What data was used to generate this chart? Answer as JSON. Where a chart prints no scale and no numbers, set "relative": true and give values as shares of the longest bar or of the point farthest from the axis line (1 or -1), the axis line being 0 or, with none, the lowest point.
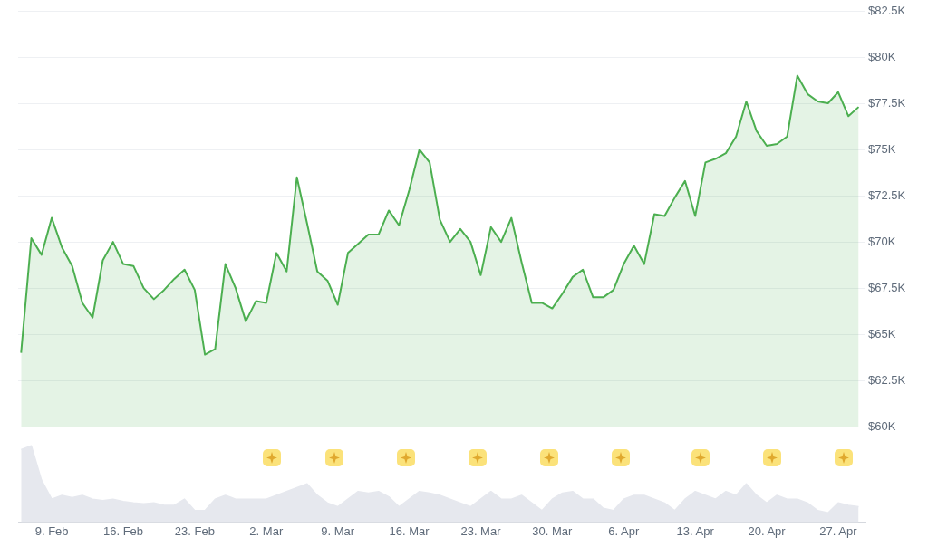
{
  "chart_data": [
    {
      "type": "area",
      "color": "#4caf50",
      "marker": "none",
      "grid": "y",
      "tick_labels": "y",
      "x": [
        "--02-06",
        "--02-07",
        "--02-08",
        "--02-09",
        "--02-10",
        "--02-11",
        "--02-12",
        "--02-13",
        "--02-14",
        "--02-15",
        "--02-16",
        "--02-17",
        "--02-18",
        "--02-19",
        "--02-20",
        "--02-21",
        "--02-22",
        "--02-23",
        "--02-24",
        "--02-25",
        "--02-26",
        "--02-27",
        "--02-28",
        "--03-01",
        "--03-02",
        "--03-03",
        "--03-04",
        "--03-05",
        "--03-06",
        "--03-07",
        "--03-08",
        "--03-09",
        "--03-10",
        "--03-11",
        "--03-12",
        "--03-13",
        "--03-14",
        "--03-15",
        "--03-16",
        "--03-17",
        "--03-18",
        "--03-19",
        "--03-20",
        "--03-21",
        "--03-22",
        "--03-23",
        "--03-24",
        "--03-25",
        "--03-26",
        "--03-27",
        "--03-28",
        "--03-29",
        "--03-30",
        "--03-31",
        "--04-01",
        "--04-02",
        "--04-03",
        "--04-04",
        "--04-05",
        "--04-06",
        "--04-07",
        "--04-08",
        "--04-09",
        "--04-10",
        "--04-11",
        "--04-12",
        "--04-13",
        "--04-14",
        "--04-15",
        "--04-16",
        "--04-17",
        "--04-18",
        "--04-19",
        "--04-20",
        "--04-21",
        "--04-22",
        "--04-23",
        "--04-24",
        "--04-25",
        "--04-26",
        "--04-27",
        "--04-28",
        "--04-29"
      ],
      "values": [
        64.0,
        70.2,
        69.3,
        71.3,
        69.7,
        68.7,
        66.7,
        65.9,
        69.0,
        70.0,
        68.8,
        68.7,
        67.5,
        66.9,
        67.4,
        68.0,
        68.5,
        67.4,
        63.9,
        64.2,
        68.8,
        67.5,
        65.7,
        66.8,
        66.7,
        69.4,
        68.4,
        73.5,
        71.0,
        68.4,
        67.9,
        66.6,
        69.4,
        69.9,
        70.4,
        70.4,
        71.7,
        70.9,
        72.8,
        75.0,
        74.3,
        71.2,
        70.0,
        70.7,
        70.0,
        68.2,
        70.8,
        70.0,
        71.3,
        68.9,
        66.7,
        66.7,
        66.4,
        67.2,
        68.1,
        68.5,
        67.0,
        67.0,
        67.4,
        68.8,
        69.8,
        68.8,
        71.5,
        71.4,
        72.4,
        73.3,
        71.4,
        74.3,
        74.5,
        74.8,
        75.7,
        77.6,
        76.0,
        75.2,
        75.3,
        75.7,
        79.0,
        78.0,
        77.6,
        77.5,
        78.1,
        76.8,
        77.3
      ],
      "xlim": [
        "--02-05T17:00",
        "--04-29T16:00"
      ],
      "ylim": [
        60,
        82.5
      ],
      "yticks": [
        {
          "value": 60,
          "label": "$60K"
        },
        {
          "value": 62.5,
          "label": "$62.5K"
        },
        {
          "value": 65,
          "label": "$65K"
        },
        {
          "value": 67.5,
          "label": "$67.5K"
        },
        {
          "value": 70,
          "label": "$70K"
        },
        {
          "value": 72.5,
          "label": "$72.5K"
        },
        {
          "value": 75,
          "label": "$75K"
        },
        {
          "value": 77.5,
          "label": "$77.5K"
        },
        {
          "value": 80,
          "label": "$80K"
        },
        {
          "value": 82.5,
          "label": "$82.5K"
        }
      ]
    },
    {
      "type": "area",
      "color": "#e6e8ee",
      "relative": true,
      "marker": "none",
      "x": [
        "--02-06",
        "--02-07",
        "--02-08",
        "--02-09",
        "--02-10",
        "--02-11",
        "--02-12",
        "--02-13",
        "--02-14",
        "--02-15",
        "--02-16",
        "--02-17",
        "--02-18",
        "--02-19",
        "--02-20",
        "--02-21",
        "--02-22",
        "--02-23",
        "--02-24",
        "--02-25",
        "--02-26",
        "--02-27",
        "--02-28",
        "--03-01",
        "--03-02",
        "--03-03",
        "--03-04",
        "--03-05",
        "--03-06",
        "--03-07",
        "--03-08",
        "--03-09",
        "--03-10",
        "--03-11",
        "--03-12",
        "--03-13",
        "--03-14",
        "--03-15",
        "--03-16",
        "--03-17",
        "--03-18",
        "--03-19",
        "--03-20",
        "--03-21",
        "--03-22",
        "--03-23",
        "--03-24",
        "--03-25",
        "--03-26",
        "--03-27",
        "--03-28",
        "--03-29",
        "--03-30",
        "--03-31",
        "--04-01",
        "--04-02",
        "--04-03",
        "--04-04",
        "--04-05",
        "--04-06",
        "--04-07",
        "--04-08",
        "--04-09",
        "--04-10",
        "--04-11",
        "--04-12",
        "--04-13",
        "--04-14",
        "--04-15",
        "--04-16",
        "--04-17",
        "--04-18",
        "--04-19",
        "--04-20",
        "--04-21",
        "--04-22",
        "--04-23",
        "--04-24",
        "--04-25",
        "--04-26",
        "--04-27",
        "--04-28",
        "--04-29"
      ],
      "values": [
        0.95,
        1.0,
        0.55,
        0.3,
        0.35,
        0.32,
        0.35,
        0.3,
        0.28,
        0.3,
        0.27,
        0.25,
        0.24,
        0.25,
        0.22,
        0.22,
        0.3,
        0.15,
        0.15,
        0.3,
        0.35,
        0.3,
        0.3,
        0.3,
        0.3,
        0.35,
        0.4,
        0.45,
        0.5,
        0.35,
        0.25,
        0.2,
        0.3,
        0.4,
        0.38,
        0.4,
        0.33,
        0.2,
        0.3,
        0.4,
        0.38,
        0.35,
        0.3,
        0.25,
        0.2,
        0.3,
        0.4,
        0.3,
        0.3,
        0.35,
        0.25,
        0.15,
        0.3,
        0.38,
        0.4,
        0.3,
        0.3,
        0.18,
        0.15,
        0.3,
        0.35,
        0.35,
        0.3,
        0.25,
        0.15,
        0.3,
        0.4,
        0.35,
        0.3,
        0.4,
        0.35,
        0.5,
        0.35,
        0.25,
        0.35,
        0.3,
        0.3,
        0.25,
        0.15,
        0.12,
        0.25,
        0.22,
        0.2
      ],
      "xlim": [
        "--02-05T17:00",
        "--04-29T16:00"
      ],
      "xticks": [
        {
          "value": "--02-09",
          "label": "9. Feb"
        },
        {
          "value": "--02-16",
          "label": "16. Feb"
        },
        {
          "value": "--02-23",
          "label": "23. Feb"
        },
        {
          "value": "--03-02",
          "label": "2. Mar"
        },
        {
          "value": "--03-09",
          "label": "9. Mar"
        },
        {
          "value": "--03-16",
          "label": "16. Mar"
        },
        {
          "value": "--03-23",
          "label": "23. Mar"
        },
        {
          "value": "--03-30",
          "label": "30. Mar"
        },
        {
          "value": "--04-06",
          "label": "6. Apr"
        },
        {
          "value": "--04-13",
          "label": "13. Apr"
        },
        {
          "value": "--04-20",
          "label": "20. Apr"
        },
        {
          "value": "--04-27",
          "label": "27. Apr"
        }
      ]
    }
  ]
}
